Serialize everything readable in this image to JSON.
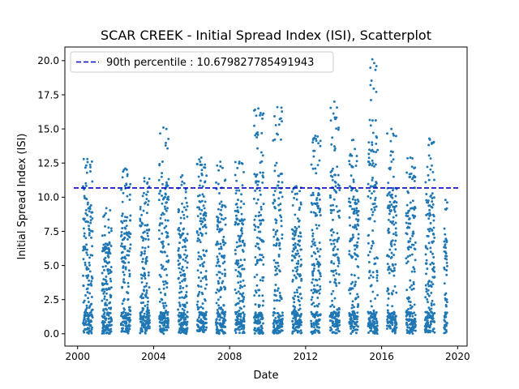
{
  "chart_data": {
    "type": "scatter",
    "title": "SCAR CREEK - Initial Spread Index (ISI), Scatterplot",
    "xlabel": "Date",
    "ylabel": "Initial Spread Index (ISI)",
    "xlim": [
      "1999-05-01",
      "2020-07-01"
    ],
    "ylim": [
      -0.9,
      21.0
    ],
    "x_ticks": [
      {
        "value": "2000-01-01",
        "label": "2000"
      },
      {
        "value": "2004-01-01",
        "label": "2004"
      },
      {
        "value": "2008-01-01",
        "label": "2008"
      },
      {
        "value": "2012-01-01",
        "label": "2012"
      },
      {
        "value": "2016-01-01",
        "label": "2016"
      },
      {
        "value": "2020-01-01",
        "label": "2020"
      }
    ],
    "y_ticks": [
      {
        "value": 0.0,
        "label": "0.0"
      },
      {
        "value": 2.5,
        "label": "2.5"
      },
      {
        "value": 5.0,
        "label": "5.0"
      },
      {
        "value": 7.5,
        "label": "7.5"
      },
      {
        "value": 10.0,
        "label": "10.0"
      },
      {
        "value": 12.5,
        "label": "12.5"
      },
      {
        "value": 15.0,
        "label": "15.0"
      },
      {
        "value": 17.5,
        "label": "17.5"
      },
      {
        "value": 20.0,
        "label": "20.0"
      }
    ],
    "grid": false,
    "legend_position": "top-left",
    "reference_line": {
      "label": "90th percentile : 10.679827785491943",
      "value": 10.679827785491943,
      "color": "#0000cc",
      "style": "dashed"
    },
    "point_color": "#1f77b4",
    "series": [
      {
        "season_peaks": [
          {
            "season": "2000",
            "start": "2000-04-15",
            "end": "2000-10-15",
            "max": 12.8
          },
          {
            "season": "2001",
            "start": "2001-04-15",
            "end": "2001-10-15",
            "max": 9.2
          },
          {
            "season": "2002",
            "start": "2002-04-15",
            "end": "2002-10-15",
            "max": 12.1
          },
          {
            "season": "2003",
            "start": "2003-04-15",
            "end": "2003-10-15",
            "max": 11.4
          },
          {
            "season": "2004",
            "start": "2004-04-15",
            "end": "2004-10-15",
            "max": 15.1
          },
          {
            "season": "2005",
            "start": "2005-04-15",
            "end": "2005-10-15",
            "max": 11.6
          },
          {
            "season": "2006",
            "start": "2006-04-15",
            "end": "2006-10-15",
            "max": 12.9
          },
          {
            "season": "2007",
            "start": "2007-04-15",
            "end": "2007-10-15",
            "max": 12.6
          },
          {
            "season": "2008",
            "start": "2008-04-15",
            "end": "2008-10-15",
            "max": 12.6
          },
          {
            "season": "2009",
            "start": "2009-04-15",
            "end": "2009-10-15",
            "max": 16.5
          },
          {
            "season": "2010",
            "start": "2010-04-15",
            "end": "2010-10-15",
            "max": 16.6
          },
          {
            "season": "2011",
            "start": "2011-04-15",
            "end": "2011-10-15",
            "max": 10.8
          },
          {
            "season": "2012",
            "start": "2012-04-15",
            "end": "2012-10-15",
            "max": 14.5
          },
          {
            "season": "2013",
            "start": "2013-04-15",
            "end": "2013-10-15",
            "max": 17.0
          },
          {
            "season": "2014",
            "start": "2014-04-15",
            "end": "2014-10-15",
            "max": 14.2
          },
          {
            "season": "2015",
            "start": "2015-04-15",
            "end": "2015-10-15",
            "max": 20.1
          },
          {
            "season": "2016",
            "start": "2016-04-15",
            "end": "2016-10-15",
            "max": 15.0
          },
          {
            "season": "2017",
            "start": "2017-04-15",
            "end": "2017-10-15",
            "max": 12.9
          },
          {
            "season": "2018",
            "start": "2018-04-15",
            "end": "2018-10-15",
            "max": 14.3
          },
          {
            "season": "2019",
            "start": "2019-04-15",
            "end": "2019-06-15",
            "max": 9.8
          }
        ]
      }
    ]
  }
}
